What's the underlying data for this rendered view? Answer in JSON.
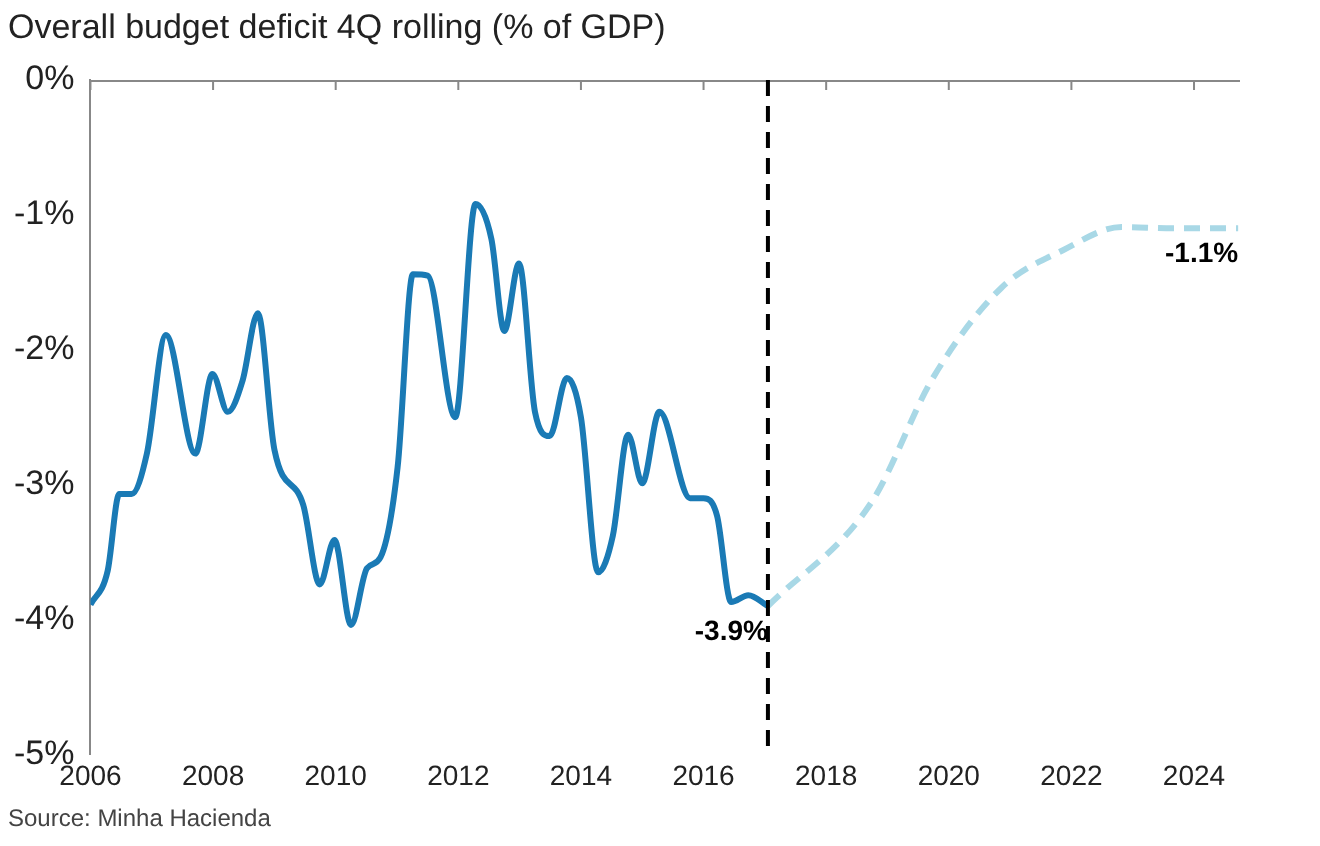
{
  "chart_data": {
    "type": "line",
    "title": "Overall budget deficit 4Q rolling (% of GDP)",
    "series": [
      {
        "color": "#1a7ab5",
        "line_style": "solid",
        "x": [
          2006.0,
          2006.28,
          2006.47,
          2006.67,
          2006.92,
          2007.23,
          2007.71,
          2007.99,
          2008.24,
          2008.48,
          2008.73,
          2009.0,
          2009.47,
          2009.74,
          2009.98,
          2010.25,
          2010.51,
          2010.73,
          2011.01,
          2011.26,
          2011.5,
          2011.95,
          2012.28,
          2012.54,
          2012.75,
          2012.99,
          2013.25,
          2013.49,
          2013.77,
          2014.0,
          2014.28,
          2014.52,
          2014.77,
          2015.0,
          2015.28,
          2015.78,
          2016.0,
          2016.22,
          2016.45,
          2016.73,
          2017.05
        ],
        "values": [
          -3.89,
          -3.64,
          -3.07,
          -3.07,
          -2.77,
          -1.89,
          -2.77,
          -2.18,
          -2.46,
          -2.23,
          -1.73,
          -2.74,
          -3.15,
          -3.74,
          -3.41,
          -4.04,
          -3.62,
          -3.54,
          -2.87,
          -1.44,
          -1.45,
          -2.5,
          -0.92,
          -1.18,
          -1.86,
          -1.36,
          -2.46,
          -2.64,
          -2.21,
          -2.5,
          -3.65,
          -3.38,
          -2.63,
          -2.99,
          -2.46,
          -3.1,
          -3.1,
          -3.23,
          -3.87,
          -3.82,
          -3.9
        ]
      },
      {
        "color": "#a8d8e6",
        "line_style": "dashed",
        "x": [
          2017.05,
          2018.74,
          2019.74,
          2020.86,
          2021.87,
          2022.82,
          2023.66,
          2024.72
        ],
        "values": [
          -3.9,
          -3.13,
          -2.21,
          -1.54,
          -1.26,
          -1.09,
          -1.1,
          -1.1
        ]
      }
    ],
    "xlim": [
      2006,
      2024.75
    ],
    "xticks": [
      2006,
      2008,
      2010,
      2012,
      2014,
      2016,
      2018,
      2020,
      2022,
      2024
    ],
    "ylim": [
      -5,
      0
    ],
    "yticks": [
      {
        "value": 0,
        "label": "0%"
      },
      {
        "value": -1,
        "label": "-1%"
      },
      {
        "value": -2,
        "label": "-2%"
      },
      {
        "value": -3,
        "label": "-3%"
      },
      {
        "value": -4,
        "label": "-4%"
      },
      {
        "value": -5,
        "label": "-5%"
      }
    ],
    "ref_lines": [
      {
        "axis": "x",
        "value": 2017.05,
        "color": "#000000",
        "line_style": "dashed"
      }
    ],
    "annotations": [
      {
        "text": "-3.9%",
        "x": 2017.05,
        "y": -3.9
      },
      {
        "text": "-1.1%",
        "x": 2024.72,
        "y": -1.1
      },
      "Source: Minha Hacienda"
    ],
    "grid": false,
    "legend": false,
    "marker": "none"
  }
}
